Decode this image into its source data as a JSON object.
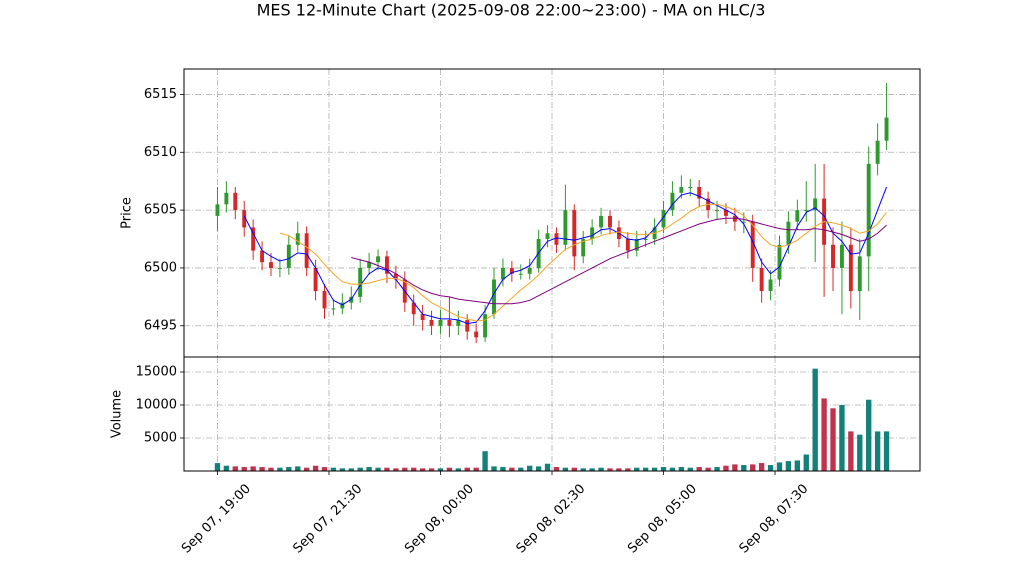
{
  "chart_data": {
    "type": "candlestick",
    "title": "MES 12-Minute Chart (2025-09-08 22:00~23:00) - MA on HLC/3",
    "ylabel": "Price",
    "volume_label": "Volume",
    "x": [
      "Sep 07, 19:00",
      "Sep 07, 19:12",
      "Sep 07, 19:24",
      "Sep 07, 19:36",
      "Sep 07, 19:48",
      "Sep 07, 20:00",
      "Sep 07, 20:12",
      "Sep 07, 20:24",
      "Sep 07, 20:36",
      "Sep 07, 20:48",
      "Sep 07, 21:00",
      "Sep 07, 21:12",
      "Sep 07, 21:24",
      "Sep 07, 21:36",
      "Sep 07, 21:48",
      "Sep 07, 22:00",
      "Sep 07, 22:12",
      "Sep 07, 22:24",
      "Sep 07, 22:36",
      "Sep 07, 22:48",
      "Sep 07, 23:00",
      "Sep 07, 23:12",
      "Sep 07, 23:24",
      "Sep 07, 23:36",
      "Sep 07, 23:48",
      "Sep 08, 00:00",
      "Sep 08, 00:12",
      "Sep 08, 00:24",
      "Sep 08, 00:36",
      "Sep 08, 00:48",
      "Sep 08, 01:00",
      "Sep 08, 01:12",
      "Sep 08, 01:24",
      "Sep 08, 01:36",
      "Sep 08, 01:48",
      "Sep 08, 02:00",
      "Sep 08, 02:12",
      "Sep 08, 02:24",
      "Sep 08, 02:36",
      "Sep 08, 02:48",
      "Sep 08, 03:00",
      "Sep 08, 03:12",
      "Sep 08, 03:24",
      "Sep 08, 03:36",
      "Sep 08, 03:48",
      "Sep 08, 04:00",
      "Sep 08, 04:12",
      "Sep 08, 04:24",
      "Sep 08, 04:36",
      "Sep 08, 04:48",
      "Sep 08, 05:00",
      "Sep 08, 05:12",
      "Sep 08, 05:24",
      "Sep 08, 05:36",
      "Sep 08, 05:48",
      "Sep 08, 06:00",
      "Sep 08, 06:12",
      "Sep 08, 06:24",
      "Sep 08, 06:36",
      "Sep 08, 06:48",
      "Sep 08, 07:00",
      "Sep 08, 07:12",
      "Sep 08, 07:24",
      "Sep 08, 07:36",
      "Sep 08, 07:48",
      "Sep 08, 08:00",
      "Sep 08, 08:12",
      "Sep 08, 08:24",
      "Sep 08, 08:36",
      "Sep 08, 08:48",
      "Sep 08, 09:00",
      "Sep 08, 09:12",
      "Sep 08, 09:24",
      "Sep 08, 09:36",
      "Sep 08, 09:48",
      "Sep 08, 10:00"
    ],
    "open": [
      6504.5,
      6505.5,
      6506.5,
      6505,
      6503.5,
      6501.5,
      6500.5,
      6500,
      6500,
      6502,
      6503,
      6500,
      6498,
      6496.5,
      6496.5,
      6497,
      6497.5,
      6500,
      6500.5,
      6501,
      6499.5,
      6499,
      6497,
      6496,
      6495.5,
      6495,
      6495.5,
      6495,
      6495.5,
      6494.5,
      6494,
      6496,
      6499,
      6500,
      6499.5,
      6499.5,
      6500,
      6502.5,
      6503,
      6502,
      6505,
      6501,
      6502.5,
      6503.5,
      6504.5,
      6503.5,
      6502.5,
      6501.5,
      6502.5,
      6502.5,
      6503.5,
      6505,
      6506.5,
      6507,
      6507,
      6506,
      6505,
      6505,
      6504.5,
      6504,
      6504,
      6500,
      6498,
      6499,
      6502,
      6504,
      6505,
      6505,
      6506,
      6502,
      6500,
      6502,
      6498,
      6501,
      6509,
      6511
    ],
    "high": [
      6507,
      6507.5,
      6507,
      6505.8,
      6504.2,
      6502.3,
      6501.3,
      6500.8,
      6502.8,
      6504,
      6503.6,
      6500.7,
      6498.6,
      6497.3,
      6497.8,
      6498.4,
      6500.8,
      6501.3,
      6501.6,
      6501.5,
      6500.2,
      6499.7,
      6497.7,
      6496.8,
      6496.3,
      6496.4,
      6497.5,
      6496.3,
      6496,
      6495.2,
      6496.8,
      6500,
      6500.8,
      6500.6,
      6500.3,
      6500.8,
      6503.3,
      6503.7,
      6503.5,
      6507.2,
      6505.5,
      6503.2,
      6504.2,
      6505.2,
      6505,
      6504.1,
      6503.1,
      6503.2,
      6503.2,
      6504.3,
      6505.8,
      6507.5,
      6508,
      6507.7,
      6507.6,
      6506.6,
      6505.8,
      6505.6,
      6505.2,
      6504.8,
      6504.6,
      6500.8,
      6499.8,
      6502.8,
      6504.9,
      6505.9,
      6507.5,
      6509,
      6509,
      6503.5,
      6504,
      6503.5,
      6502.5,
      6510.5,
      6512.5,
      6516
    ],
    "low": [
      6503.2,
      6504.8,
      6504.2,
      6502.7,
      6500.7,
      6499.8,
      6499.3,
      6499.2,
      6499.4,
      6501.4,
      6499.3,
      6497.2,
      6495.6,
      6495.9,
      6496,
      6496.4,
      6497,
      6499.4,
      6499.8,
      6498.7,
      6498.2,
      6496.2,
      6495,
      6494.6,
      6494.2,
      6494.3,
      6494,
      6494.2,
      6493.8,
      6493.5,
      6493.6,
      6495.6,
      6498.4,
      6498.8,
      6499,
      6499,
      6499.6,
      6501.8,
      6501.3,
      6501.5,
      6499.8,
      6500.4,
      6502,
      6502.9,
      6502.9,
      6501.8,
      6500.8,
      6501,
      6501.8,
      6502,
      6503,
      6504.5,
      6506,
      6506.2,
      6505.3,
      6504.3,
      6504.2,
      6503.8,
      6503.2,
      6503,
      6498.8,
      6497,
      6497.2,
      6498.4,
      6501.2,
      6503.3,
      6504,
      6500.5,
      6497.5,
      6498,
      6496,
      6496.5,
      6495.5,
      6498,
      6508,
      6510.2
    ],
    "close": [
      6505.5,
      6506.5,
      6505,
      6503.5,
      6501.5,
      6500.5,
      6500,
      6500,
      6502,
      6503,
      6500,
      6498,
      6496.5,
      6496.5,
      6497,
      6497.5,
      6500,
      6500.5,
      6501,
      6499.5,
      6499,
      6497,
      6496,
      6495.5,
      6495,
      6495.5,
      6495,
      6495.5,
      6494.5,
      6494,
      6496,
      6499,
      6500,
      6499.5,
      6499.5,
      6500,
      6502.5,
      6503,
      6502,
      6505,
      6501,
      6502.5,
      6503.5,
      6504.5,
      6503.5,
      6502.5,
      6501.5,
      6502.5,
      6502.5,
      6503.5,
      6505,
      6506.5,
      6507,
      6507,
      6506,
      6505,
      6505,
      6504.5,
      6504,
      6504,
      6500,
      6498,
      6499,
      6502,
      6504,
      6505,
      6505,
      6506,
      6502,
      6500,
      6502,
      6498,
      6501,
      6509,
      6511,
      6513
    ],
    "volume": [
      1200,
      800,
      700,
      600,
      700,
      600,
      500,
      500,
      600,
      700,
      500,
      800,
      600,
      500,
      400,
      400,
      500,
      600,
      500,
      500,
      400,
      500,
      500,
      400,
      400,
      400,
      500,
      400,
      500,
      500,
      3000,
      700,
      600,
      500,
      500,
      800,
      700,
      1100,
      600,
      500,
      500,
      400,
      400,
      500,
      400,
      400,
      400,
      500,
      500,
      500,
      600,
      500,
      600,
      500,
      600,
      500,
      600,
      800,
      1000,
      900,
      1000,
      1200,
      900,
      1300,
      1500,
      1600,
      2500,
      15500,
      11000,
      9500,
      10000,
      6000,
      5500,
      10800,
      6000,
      6000
    ],
    "up_color": "#2e9a2e",
    "down_color": "#d62728",
    "volume_up_color": "#13807a",
    "volume_down_color": "#c0334d",
    "ma_series": [
      {
        "color": "#0000ff",
        "values": [
          null,
          null,
          null,
          6504.5,
          6503,
          6501.5,
          6501,
          6500.6,
          6500.8,
          6501.3,
          6501.2,
          6500,
          6498.5,
          6497.2,
          6496.8,
          6497.3,
          6498.5,
          6499.5,
          6500,
          6499.8,
          6499,
          6498,
          6497,
          6496,
          6495.8,
          6495.6,
          6495.6,
          6495.5,
          6495.2,
          6495.3,
          6496.3,
          6497.8,
          6499,
          6499.6,
          6499.8,
          6500.2,
          6501.3,
          6502.3,
          6502.6,
          6502.5,
          6502.4,
          6502.6,
          6502.8,
          6503.3,
          6503.4,
          6503,
          6502.5,
          6502.4,
          6502.6,
          6503.4,
          6504.4,
          6505.5,
          6506.3,
          6506.5,
          6506.2,
          6505.8,
          6505.4,
          6505,
          6504.6,
          6503.8,
          6502.3,
          6500.5,
          6499.5,
          6500.1,
          6501.8,
          6503.6,
          6504.8,
          6505.2,
          6504.5,
          6503,
          6502.3,
          6501.2,
          6501.3,
          6503,
          6505,
          6507
        ]
      },
      {
        "color": "#f5a623",
        "values": [
          null,
          null,
          null,
          null,
          null,
          null,
          null,
          6503,
          6502.8,
          6502.3,
          6501.8,
          6501.2,
          6500.3,
          6499.5,
          6498.8,
          6498.6,
          6498.6,
          6498.7,
          6498.9,
          6499.1,
          6499.1,
          6498.8,
          6498.3,
          6497.6,
          6497,
          6496.6,
          6496.2,
          6495.8,
          6495.6,
          6495.4,
          6495.5,
          6496,
          6496.7,
          6497.4,
          6498.1,
          6498.7,
          6499.4,
          6500.2,
          6500.9,
          6501.6,
          6502,
          6502.3,
          6502.5,
          6502.8,
          6503,
          6503.1,
          6503,
          6502.9,
          6502.9,
          6503,
          6503.3,
          6503.8,
          6504.3,
          6504.9,
          6505.3,
          6505.5,
          6505.5,
          6505.3,
          6505,
          6504.5,
          6503.7,
          6502.7,
          6502,
          6501.8,
          6502,
          6502.4,
          6503,
          6503.6,
          6504,
          6503.9,
          6503.7,
          6503.4,
          6503,
          6503.2,
          6503.8,
          6504.8
        ]
      },
      {
        "color": "#800080",
        "values": [
          null,
          null,
          null,
          null,
          null,
          null,
          null,
          null,
          null,
          null,
          null,
          null,
          null,
          null,
          null,
          6500.9,
          6500.7,
          6500.5,
          6500.2,
          6499.9,
          6499.5,
          6499,
          6498.5,
          6498.1,
          6497.8,
          6497.6,
          6497.5,
          6497.3,
          6497.2,
          6497.1,
          6497,
          6496.9,
          6496.9,
          6496.9,
          6497,
          6497.2,
          6497.6,
          6498,
          6498.4,
          6498.8,
          6499.2,
          6499.6,
          6500,
          6500.4,
          6500.8,
          6501.1,
          6501.4,
          6501.7,
          6502,
          6502.3,
          6502.6,
          6502.9,
          6503.2,
          6503.5,
          6503.8,
          6504,
          6504.2,
          6504.3,
          6504.3,
          6504.2,
          6504,
          6503.8,
          6503.6,
          6503.4,
          6503.3,
          6503.3,
          6503.3,
          6503.4,
          6503.3,
          6503.1,
          6502.9,
          6502.6,
          6502.3,
          6502.5,
          6503,
          6503.7
        ]
      }
    ],
    "xlim": [
      "Sep 07, 18:15",
      "Sep 08, 10:45"
    ],
    "xticks": [
      "Sep 07, 19:00",
      "Sep 07, 21:30",
      "Sep 08, 00:00",
      "Sep 08, 02:30",
      "Sep 08, 05:00",
      "Sep 08, 07:30"
    ],
    "ylim": [
      6492.3,
      6517.2
    ],
    "yticks": [
      6495,
      6500,
      6505,
      6510,
      6515
    ],
    "volume_ylim": [
      0,
      17270
    ],
    "volume_yticks": [
      5000,
      10000,
      15000
    ],
    "grid": true
  }
}
